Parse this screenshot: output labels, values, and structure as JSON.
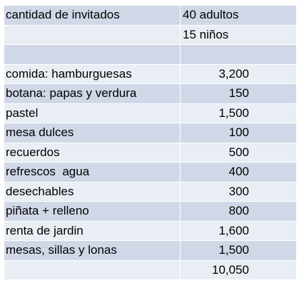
{
  "header": {
    "label": "cantidad de invitados",
    "adults": "40 adultos",
    "children": "15 niños"
  },
  "items": [
    {
      "label": "comida: hamburguesas",
      "amount": "3,200"
    },
    {
      "label": "botana: papas y verdura",
      "amount": "150"
    },
    {
      "label": "pastel",
      "amount": "1,500"
    },
    {
      "label": "mesa dulces",
      "amount": "100"
    },
    {
      "label": "recuerdos",
      "amount": "500"
    },
    {
      "label": "refrescos  agua",
      "amount": "400"
    },
    {
      "label": "desechables",
      "amount": "300"
    },
    {
      "label": "piñata + relleno",
      "amount": "800"
    },
    {
      "label": "renta de jardin",
      "amount": "1,600"
    },
    {
      "label": "mesas, sillas y lonas",
      "amount": "1,500"
    }
  ],
  "total": {
    "amount": "10,050"
  },
  "colors": {
    "row_light": "#e9edf4",
    "row_dark": "#d0d8e8",
    "divider": "#ffffff"
  }
}
